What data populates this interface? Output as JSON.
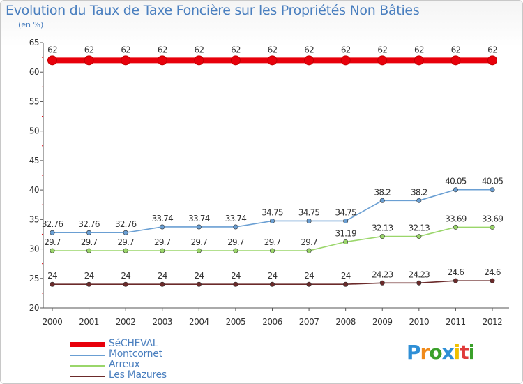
{
  "chart_data": {
    "type": "line",
    "title": "Evolution du Taux de Taxe Foncière sur les Propriétés Non Bâties",
    "subtitle": "(en %)",
    "categories": [
      "2000",
      "2001",
      "2002",
      "2003",
      "2004",
      "2005",
      "2006",
      "2007",
      "2008",
      "2009",
      "2010",
      "2011",
      "2012"
    ],
    "ylim": [
      20,
      65
    ],
    "yticks": [
      20,
      25,
      30,
      35,
      40,
      45,
      50,
      55,
      60,
      65
    ],
    "grid": false,
    "legend_position": "bottom-left",
    "series": [
      {
        "name": "SéCHEVAL",
        "color": "#e8000b",
        "bold": true,
        "values": [
          62,
          62,
          62,
          62,
          62,
          62,
          62,
          62,
          62,
          62,
          62,
          62,
          62
        ],
        "labels": [
          "62",
          "62",
          "62",
          "62",
          "62",
          "62",
          "62",
          "62",
          "62",
          "62",
          "62",
          "62",
          "62"
        ]
      },
      {
        "name": "Montcornet",
        "color": "#6a9fd3",
        "bold": false,
        "values": [
          32.76,
          32.76,
          32.76,
          33.74,
          33.74,
          33.74,
          34.75,
          34.75,
          34.75,
          38.2,
          38.2,
          40.05,
          40.05
        ],
        "labels": [
          "32.76",
          "32.76",
          "32.76",
          "33.74",
          "33.74",
          "33.74",
          "34.75",
          "34.75",
          "34.75",
          "38.2",
          "38.2",
          "40.05",
          "40.05"
        ]
      },
      {
        "name": "Arreux",
        "color": "#9ad66a",
        "bold": false,
        "values": [
          29.7,
          29.7,
          29.7,
          29.7,
          29.7,
          29.7,
          29.7,
          29.7,
          31.19,
          32.13,
          32.13,
          33.69,
          33.69
        ],
        "labels": [
          "29.7",
          "29.7",
          "29.7",
          "29.7",
          "29.7",
          "29.7",
          "29.7",
          "29.7",
          "31.19",
          "32.13",
          "32.13",
          "33.69",
          "33.69"
        ]
      },
      {
        "name": "Les Mazures",
        "color": "#6b2a2a",
        "bold": false,
        "values": [
          24,
          24,
          24,
          24,
          24,
          24,
          24,
          24,
          24,
          24.23,
          24.23,
          24.6,
          24.6
        ],
        "labels": [
          "24",
          "24",
          "24",
          "24",
          "24",
          "24",
          "24",
          "24",
          "24",
          "24.23",
          "24.23",
          "24.6",
          "24.6"
        ]
      }
    ]
  },
  "logo": {
    "letters": [
      "P",
      "r",
      "o",
      "x",
      "i",
      "t",
      "i"
    ],
    "colors": [
      "#2f8fd6",
      "#f08a1a",
      "#3aa02a",
      "#2f8fd6",
      "#f0c000",
      "#e03a3a",
      "#3aa02a"
    ]
  }
}
